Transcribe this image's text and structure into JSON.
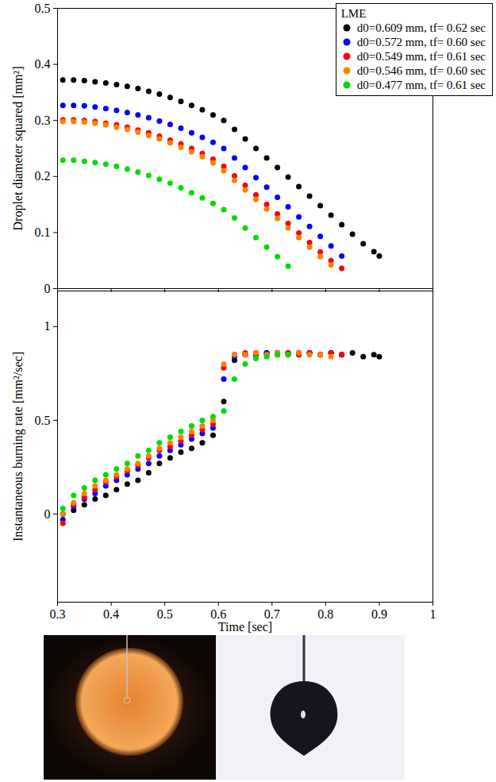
{
  "chart_data": [
    {
      "type": "scatter",
      "marker": "circle",
      "grid": false,
      "tick_labels": "y",
      "legend": "top-right",
      "legend_title": "LME",
      "y_label": "Droplet diameter squared [mm²]",
      "xlim": [
        0.3,
        1.0
      ],
      "xticks": [
        0.3,
        0.4,
        0.5,
        0.6,
        0.7,
        0.8,
        0.9,
        1
      ],
      "ylim": [
        0,
        0.5
      ],
      "yticks": [
        0,
        0.1,
        0.2,
        0.3,
        0.4,
        0.5
      ],
      "x": [
        0.31,
        0.33,
        0.35,
        0.37,
        0.39,
        0.41,
        0.43,
        0.45,
        0.47,
        0.49,
        0.51,
        0.53,
        0.55,
        0.57,
        0.59,
        0.61,
        0.63,
        0.65,
        0.67,
        0.69,
        0.71,
        0.73,
        0.75,
        0.77,
        0.79,
        0.81,
        0.83,
        0.85,
        0.87,
        0.89,
        0.9
      ],
      "series": [
        {
          "name": "d0=0.609 mm, tf= 0.62 sec",
          "color": "#000000",
          "values": [
            0.372,
            0.372,
            0.371,
            0.369,
            0.367,
            0.364,
            0.361,
            0.357,
            0.352,
            0.347,
            0.341,
            0.334,
            0.327,
            0.319,
            0.31,
            0.3,
            0.284,
            0.267,
            0.25,
            0.233,
            0.216,
            0.199,
            0.182,
            0.165,
            0.148,
            0.131,
            0.114,
            0.097,
            0.08,
            0.066,
            0.058
          ]
        },
        {
          "name": "d0=0.572 mm, tf= 0.60 sec",
          "color": "#0000ff",
          "values": [
            0.327,
            0.327,
            0.326,
            0.324,
            0.321,
            0.318,
            0.314,
            0.31,
            0.305,
            0.299,
            0.293,
            0.286,
            0.278,
            0.27,
            0.261,
            0.25,
            0.233,
            0.216,
            0.198,
            0.181,
            0.163,
            0.146,
            0.128,
            0.111,
            0.093,
            0.076,
            0.058,
            null,
            null,
            null,
            null
          ]
        },
        {
          "name": "d0=0.549 mm, tf= 0.61 sec",
          "color": "#ff0000",
          "values": [
            0.301,
            0.301,
            0.3,
            0.298,
            0.295,
            0.292,
            0.288,
            0.283,
            0.278,
            0.272,
            0.265,
            0.258,
            0.25,
            0.241,
            0.231,
            0.218,
            0.201,
            0.184,
            0.167,
            0.15,
            0.133,
            0.116,
            0.099,
            0.082,
            0.065,
            0.05,
            0.036,
            null,
            null,
            null,
            null
          ]
        },
        {
          "name": "d0=0.546 mm, tf= 0.60 sec",
          "color": "#ff8000",
          "values": [
            0.298,
            0.298,
            0.297,
            0.295,
            0.292,
            0.288,
            0.284,
            0.279,
            0.273,
            0.267,
            0.26,
            0.252,
            0.244,
            0.235,
            0.224,
            0.21,
            0.193,
            0.176,
            0.159,
            0.142,
            0.125,
            0.108,
            0.091,
            0.074,
            0.057,
            0.042,
            null,
            null,
            null,
            null,
            null
          ]
        },
        {
          "name": "d0=0.477 mm, tf= 0.61 sec",
          "color": "#00dd00",
          "values": [
            0.229,
            0.229,
            0.227,
            0.225,
            0.222,
            0.218,
            0.213,
            0.208,
            0.202,
            0.195,
            0.188,
            0.18,
            0.171,
            0.162,
            0.152,
            0.141,
            0.126,
            0.108,
            0.091,
            0.074,
            0.057,
            0.04,
            null,
            null,
            null,
            null,
            null,
            null,
            null,
            null,
            null
          ]
        }
      ]
    },
    {
      "type": "scatter",
      "marker": "circle",
      "grid": false,
      "x_label": "Time [sec]",
      "y_label": "Instantaneous burning rate [mm²/sec]",
      "xlim": [
        0.3,
        1.0
      ],
      "xticks": [
        0.3,
        0.4,
        0.5,
        0.6,
        0.7,
        0.8,
        0.9,
        1
      ],
      "ylim": [
        -0.47,
        1.19
      ],
      "yticks": [
        0,
        0.5,
        1
      ],
      "x": [
        0.31,
        0.33,
        0.35,
        0.37,
        0.39,
        0.41,
        0.43,
        0.45,
        0.47,
        0.49,
        0.51,
        0.53,
        0.55,
        0.57,
        0.59,
        0.61,
        0.63,
        0.65,
        0.67,
        0.69,
        0.71,
        0.73,
        0.75,
        0.77,
        0.79,
        0.81,
        0.83,
        0.85,
        0.87,
        0.89,
        0.9
      ],
      "series": [
        {
          "name": "d0=0.609 mm, tf= 0.62 sec",
          "color": "#000000",
          "values": [
            0.0,
            0.02,
            0.05,
            0.08,
            0.1,
            0.13,
            0.16,
            0.18,
            0.22,
            0.27,
            0.3,
            0.33,
            0.35,
            0.38,
            0.42,
            0.6,
            0.82,
            0.85,
            0.85,
            0.86,
            0.86,
            0.85,
            0.86,
            0.86,
            0.85,
            0.86,
            0.85,
            0.86,
            0.84,
            0.85,
            0.84
          ]
        },
        {
          "name": "d0=0.572 mm, tf= 0.60 sec",
          "color": "#0000ff",
          "values": [
            -0.03,
            0.04,
            0.08,
            0.11,
            0.15,
            0.18,
            0.21,
            0.24,
            0.27,
            0.31,
            0.34,
            0.37,
            0.4,
            0.43,
            0.46,
            0.72,
            0.84,
            0.85,
            0.86,
            0.86,
            0.85,
            0.86,
            0.85,
            0.86,
            0.85,
            0.86,
            0.85,
            null,
            null,
            null,
            null
          ]
        },
        {
          "name": "d0=0.549 mm, tf= 0.61 sec",
          "color": "#ff0000",
          "values": [
            -0.05,
            0.05,
            0.09,
            0.13,
            0.17,
            0.2,
            0.23,
            0.26,
            0.3,
            0.34,
            0.36,
            0.39,
            0.42,
            0.45,
            0.48,
            0.78,
            0.85,
            0.86,
            0.86,
            0.85,
            0.86,
            0.86,
            0.85,
            0.86,
            0.85,
            0.86,
            0.85,
            null,
            null,
            null,
            null
          ]
        },
        {
          "name": "d0=0.546 mm, tf= 0.60 sec",
          "color": "#ff8000",
          "values": [
            0.0,
            0.06,
            0.11,
            0.15,
            0.18,
            0.21,
            0.24,
            0.27,
            0.31,
            0.35,
            0.38,
            0.41,
            0.44,
            0.47,
            0.5,
            0.8,
            0.85,
            0.85,
            0.86,
            0.85,
            0.86,
            0.85,
            0.86,
            0.85,
            0.85,
            0.84,
            null,
            null,
            null,
            null,
            null
          ]
        },
        {
          "name": "d0=0.477 mm, tf= 0.61 sec",
          "color": "#00dd00",
          "values": [
            0.03,
            0.1,
            0.14,
            0.18,
            0.21,
            0.24,
            0.27,
            0.31,
            0.34,
            0.38,
            0.41,
            0.44,
            0.47,
            0.5,
            0.52,
            0.55,
            0.72,
            0.8,
            0.83,
            0.84,
            0.85,
            0.85,
            null,
            null,
            null,
            null,
            null,
            null,
            null,
            null,
            null
          ]
        }
      ]
    }
  ]
}
